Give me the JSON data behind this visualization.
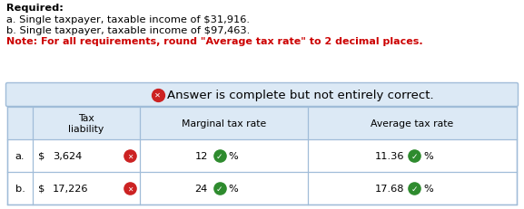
{
  "title_required": "Required:",
  "line_a": "a. Single taxpayer, taxable income of $31,916.",
  "line_b": "b. Single taxpayer, taxable income of $97,463.",
  "note": "Note: For all requirements, round \"Average tax rate\" to 2 decimal places.",
  "banner_text": "Answer is complete but not entirely correct.",
  "banner_bg": "#dce9f5",
  "banner_border": "#a0bcd8",
  "table_bg": "#ffffff",
  "table_header_bg": "#dce9f5",
  "table_border": "#a0bcd8",
  "col_headers": [
    "Tax\nliability",
    "Marginal tax rate",
    "Average tax rate"
  ],
  "row_labels": [
    "a.",
    "b."
  ],
  "tax_liability_dollar": [
    "$",
    "$"
  ],
  "tax_liability_amount": [
    "3,624",
    "17,226"
  ],
  "marginal_tax": [
    "12",
    "24"
  ],
  "average_tax": [
    "11.36",
    "17.68"
  ],
  "check_color": "#2e8b2e",
  "x_color": "#cc2222",
  "text_color": "#000000",
  "note_color": "#cc0000",
  "title_color": "#000000",
  "fig_w": 5.77,
  "fig_h": 2.32,
  "dpi": 100
}
